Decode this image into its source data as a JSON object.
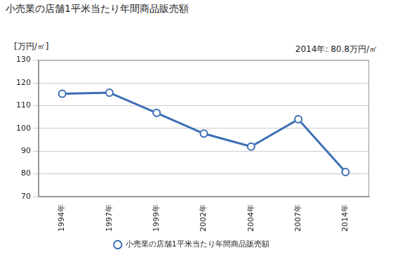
{
  "chart_data": {
    "type": "line",
    "title": "小売業の店舗1平米当たり年間商品販売額",
    "y_label": "[万円/㎡]",
    "annotation": "2014年: 80.8万円/㎡",
    "categories": [
      "1994年",
      "1997年",
      "1999年",
      "2002年",
      "2004年",
      "2007年",
      "2014年"
    ],
    "series": [
      {
        "name": "小売業の店舗1平米当たり年間商品販売額",
        "color": "#3b6eb4",
        "marker": "circle",
        "values": [
          115.2,
          115.7,
          106.8,
          97.7,
          92.0,
          104.0,
          80.8
        ]
      }
    ],
    "ylim": [
      70,
      130
    ],
    "yticks": [
      70,
      80,
      90,
      100,
      110,
      120,
      130
    ],
    "grid": true,
    "legend": "bottom"
  }
}
